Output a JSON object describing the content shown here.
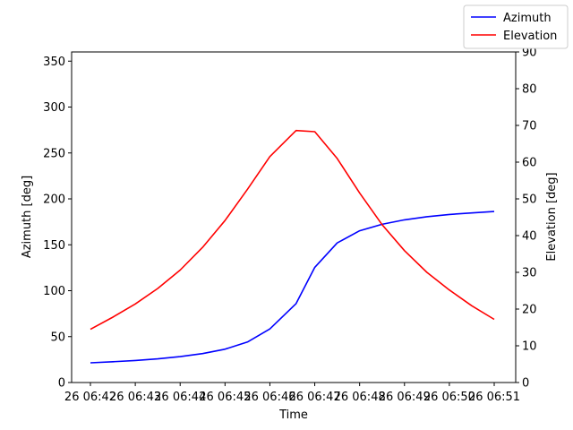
{
  "chart_data": {
    "type": "line",
    "xlabel": "Time",
    "x_ticks": [
      "26 06:42",
      "26 06:43",
      "26 06:44",
      "26 06:45",
      "26 06:46",
      "26 06:47",
      "26 06:48",
      "26 06:49",
      "26 06:50",
      "26 06:51"
    ],
    "x": [
      "06:42:00",
      "06:42:30",
      "06:43:00",
      "06:43:30",
      "06:44:00",
      "06:44:30",
      "06:45:00",
      "06:45:30",
      "06:46:00",
      "06:46:35",
      "06:47:00",
      "06:47:30",
      "06:48:00",
      "06:48:30",
      "06:49:00",
      "06:49:30",
      "06:50:00",
      "06:50:30",
      "06:51:00"
    ],
    "left_axis": {
      "label": "Azimuth [deg]",
      "ylim": [
        0,
        360
      ],
      "ticks": [
        0,
        50,
        100,
        150,
        200,
        250,
        300,
        350
      ]
    },
    "right_axis": {
      "label": "Elevation [deg]",
      "ylim": [
        0,
        90
      ],
      "ticks": [
        0,
        10,
        20,
        30,
        40,
        50,
        60,
        70,
        80,
        90
      ]
    },
    "series": [
      {
        "name": "Azimuth",
        "axis": "left",
        "color": "#0000ff",
        "values": [
          21.5,
          22.6,
          24.0,
          25.8,
          28.2,
          31.5,
          36.3,
          44.1,
          58.3,
          86.0,
          125.5,
          152.0,
          165.3,
          172.3,
          177.2,
          180.6,
          183.0,
          184.7,
          186.2
        ]
      },
      {
        "name": "Elevation",
        "axis": "right",
        "color": "#ff0000",
        "values": [
          14.5,
          17.8,
          21.4,
          25.6,
          30.6,
          36.8,
          44.1,
          52.6,
          61.5,
          68.6,
          68.3,
          61.0,
          51.6,
          43.0,
          35.9,
          30.0,
          25.2,
          20.9,
          17.2
        ]
      }
    ],
    "legend_position": "top-right"
  }
}
